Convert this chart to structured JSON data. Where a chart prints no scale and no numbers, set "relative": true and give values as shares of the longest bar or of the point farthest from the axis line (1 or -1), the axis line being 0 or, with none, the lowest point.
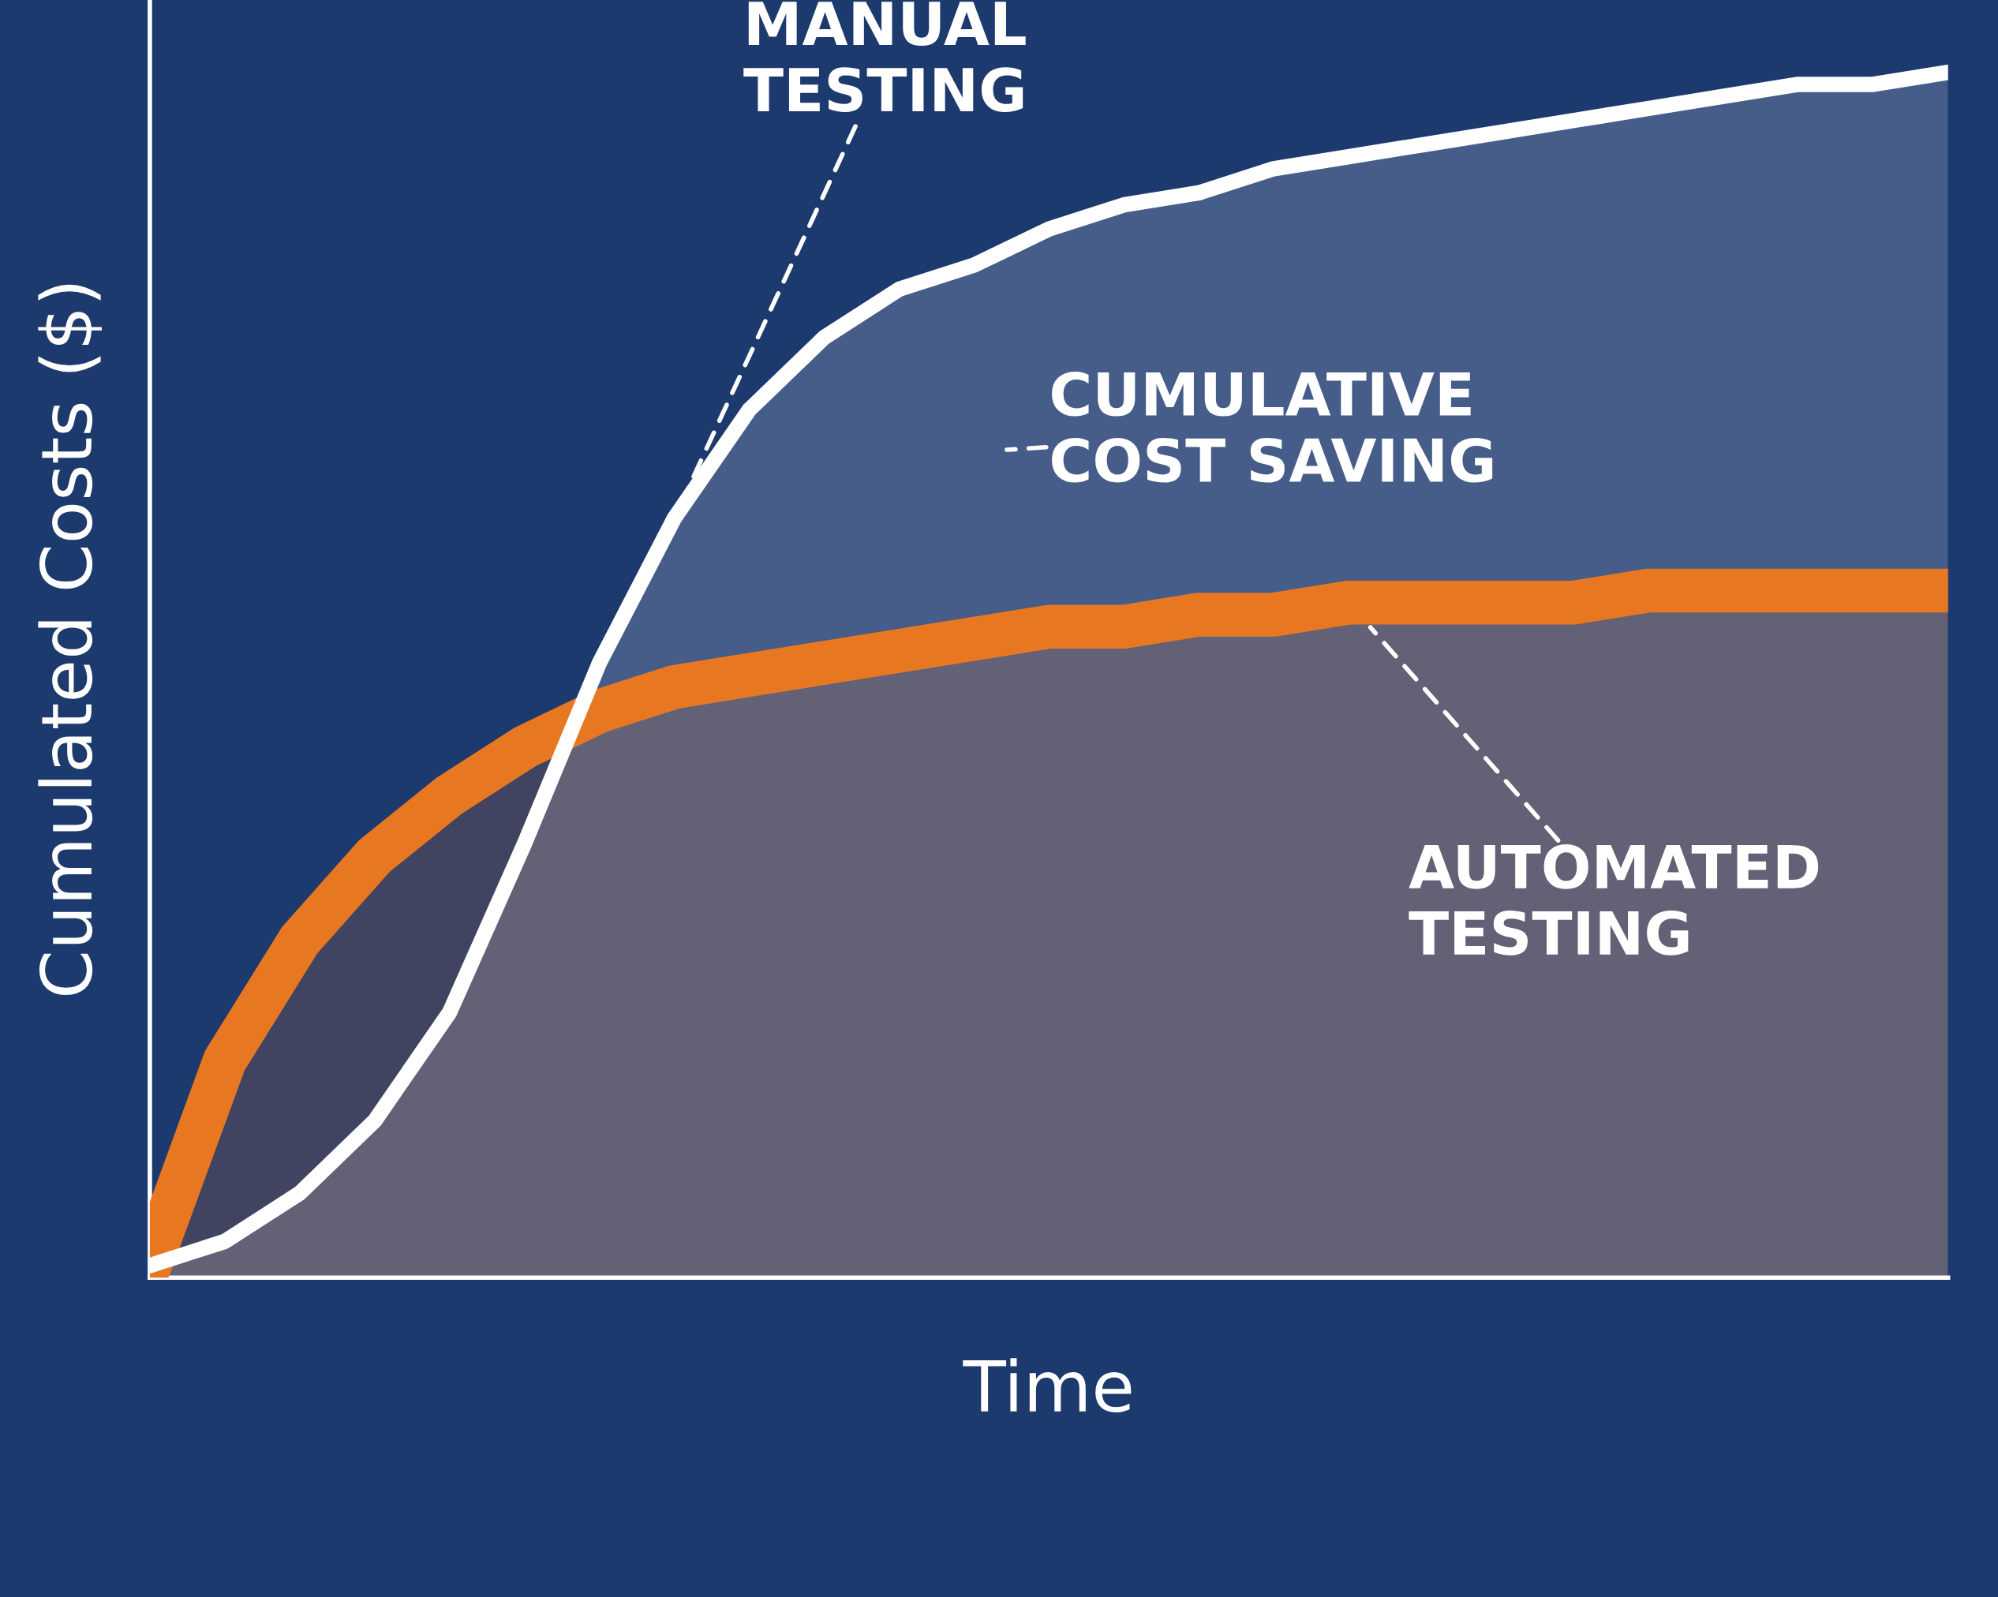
{
  "chart_data": {
    "type": "area",
    "relative": true,
    "xlabel": "Time",
    "ylabel": "Cumulated Costs ($)",
    "categories": [
      null,
      null,
      null,
      null,
      null,
      null,
      null,
      null,
      null,
      null,
      null,
      null,
      null,
      null,
      null,
      null,
      null,
      null,
      null,
      null,
      null,
      null,
      null,
      null,
      null
    ],
    "series": [
      {
        "color": "#ffffff",
        "values": [
          0.01,
          0.03,
          0.07,
          0.13,
          0.22,
          0.36,
          0.51,
          0.63,
          0.72,
          0.78,
          0.82,
          0.84,
          0.87,
          0.89,
          0.9,
          0.92,
          0.93,
          0.94,
          0.95,
          0.96,
          0.97,
          0.98,
          0.99,
          0.99,
          1.0
        ]
      },
      {
        "color": "#e87722",
        "values": [
          0.01,
          0.18,
          0.28,
          0.35,
          0.4,
          0.44,
          0.47,
          0.49,
          0.5,
          0.51,
          0.52,
          0.53,
          0.54,
          0.54,
          0.55,
          0.55,
          0.56,
          0.56,
          0.56,
          0.56,
          0.57,
          0.57,
          0.57,
          0.57,
          0.57
        ]
      }
    ],
    "annotations": [
      "MANUAL\nTESTING",
      "CUMULATIVE\nCOST SAVING",
      "AUTOMATED\nTESTING"
    ]
  }
}
